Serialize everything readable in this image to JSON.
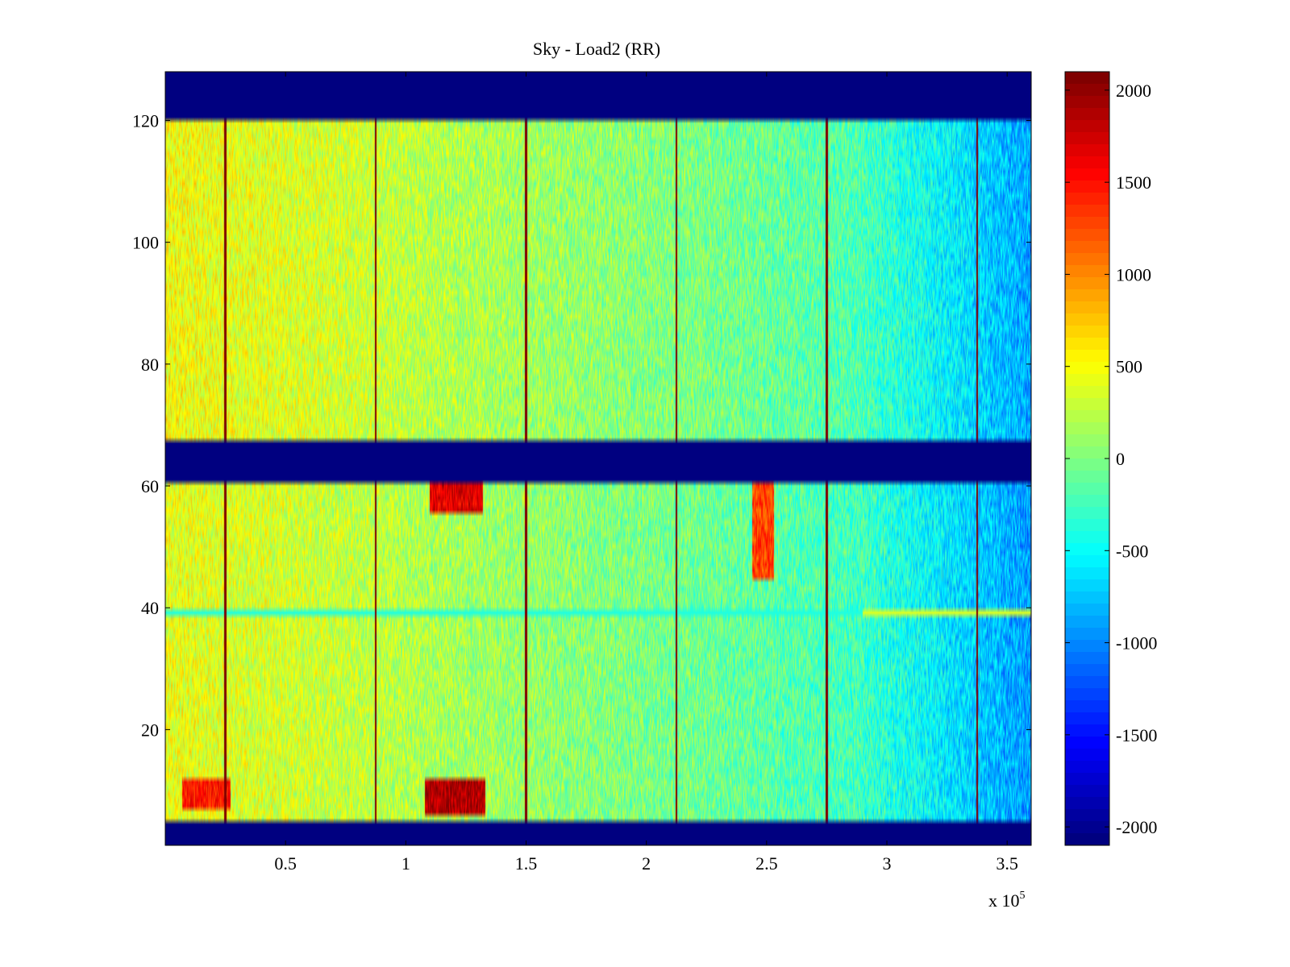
{
  "chart_data": {
    "type": "heatmap",
    "title": "Sky - Load2 (RR)",
    "xlabel": "",
    "ylabel": "",
    "x_multiplier_label": "x 10",
    "x_multiplier_exponent": "5",
    "xlim": [
      0,
      3.6
    ],
    "ylim": [
      1,
      128
    ],
    "xticks": [
      0.5,
      1,
      1.5,
      2,
      2.5,
      3,
      3.5
    ],
    "xtick_labels": [
      "0.5",
      "1",
      "1.5",
      "2",
      "2.5",
      "3",
      "3.5"
    ],
    "yticks": [
      20,
      40,
      60,
      80,
      100,
      120
    ],
    "ytick_labels": [
      "20",
      "40",
      "60",
      "80",
      "100",
      "120"
    ],
    "colormap": "jet",
    "clim": [
      -2100,
      2100
    ],
    "colorbar_ticks": [
      2000,
      1500,
      1000,
      500,
      0,
      -500,
      -1000,
      -1500,
      -2000
    ],
    "colorbar_labels": [
      "2000",
      "1500",
      "1000",
      "500",
      "0",
      "-500",
      "-1000",
      "-1500",
      "-2000"
    ],
    "masked_row_bands": [
      [
        1,
        4
      ],
      [
        61,
        67
      ],
      [
        121,
        128
      ]
    ],
    "masked_value": -2100,
    "vertical_stripes_x": [
      0.25,
      0.875,
      1.5,
      2.125,
      2.75,
      3.375
    ],
    "horizontal_line_y": 39,
    "description_values": {
      "upper_band_trend_left_to_right": [
        500,
        350,
        150,
        0,
        -200,
        -900
      ],
      "lower_band_hotspots": [
        {
          "x_range": [
            0.07,
            0.27
          ],
          "y_range": [
            7,
            11
          ],
          "value": 1500
        },
        {
          "x_range": [
            1.08,
            1.33
          ],
          "y_range": [
            6,
            11
          ],
          "value": 1900
        },
        {
          "x_range": [
            1.1,
            1.32
          ],
          "y_range": [
            56,
            61
          ],
          "value": 1700
        },
        {
          "x_range": [
            2.44,
            2.53
          ],
          "y_range": [
            45,
            61
          ],
          "value": 1300
        }
      ]
    }
  },
  "colors": {
    "background": "#ffffff",
    "axis": "#000000"
  }
}
